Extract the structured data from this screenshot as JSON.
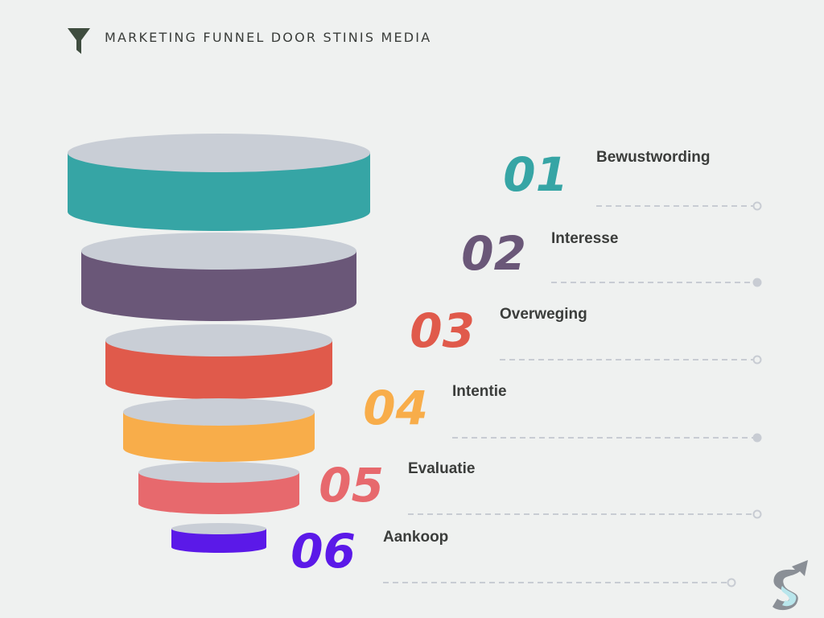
{
  "header": {
    "title": "MARKETING FUNNEL DOOR STINIS MEDIA",
    "icon": "funnel-icon"
  },
  "colors": {
    "background": "#eff1f0",
    "top_face": "#c9ced6",
    "leader": "#c8ccd3",
    "text": "#3b3d3b"
  },
  "stages": [
    {
      "number": "01",
      "label": "Bewustwording",
      "color": "#36a5a5",
      "dot": "open"
    },
    {
      "number": "02",
      "label": "Interesse",
      "color": "#6a5778",
      "dot": "filled"
    },
    {
      "number": "03",
      "label": "Overweging",
      "color": "#e05a4b",
      "dot": "open"
    },
    {
      "number": "04",
      "label": "Intentie",
      "color": "#f8ad4a",
      "dot": "filled"
    },
    {
      "number": "05",
      "label": "Evaluatie",
      "color": "#e7696d",
      "dot": "open"
    },
    {
      "number": "06",
      "label": "Aankoop",
      "color": "#5b19e8",
      "dot": "open"
    }
  ],
  "logo": {
    "icon": "stinis-media-s-logo"
  }
}
